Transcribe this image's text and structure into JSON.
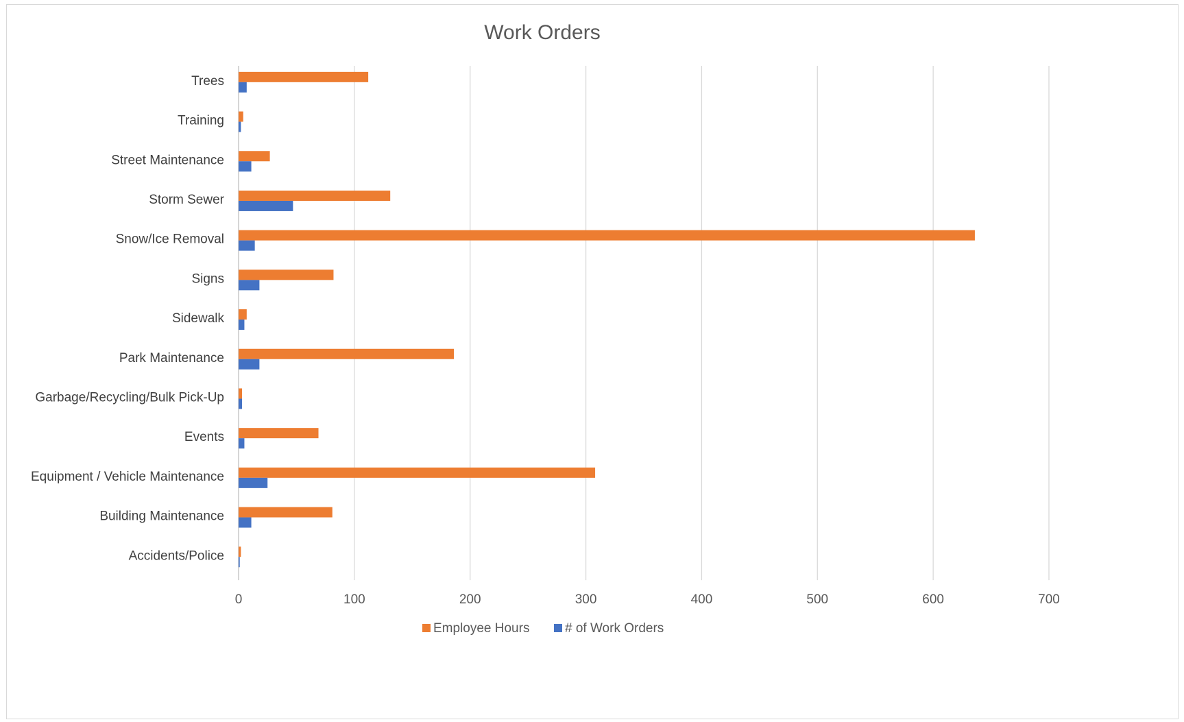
{
  "chart_data": {
    "type": "bar",
    "orientation": "horizontal",
    "title": "Work Orders",
    "xlabel": "",
    "ylabel": "",
    "xlim": [
      0,
      700
    ],
    "xticks": [
      "0",
      "100",
      "200",
      "300",
      "400",
      "500",
      "600",
      "700"
    ],
    "grid": true,
    "legend_position": "bottom",
    "categories": [
      "Trees",
      "Training",
      "Street Maintenance",
      "Storm Sewer",
      "Snow/Ice Removal",
      "Signs",
      "Sidewalk",
      "Park Maintenance",
      "Garbage/Recycling/Bulk Pick-Up",
      "Events",
      "Equipment / Vehicle Maintenance",
      "Building Maintenance",
      "Accidents/Police"
    ],
    "series": [
      {
        "name": "Employee Hours",
        "color": "#ED7D31",
        "values": [
          112,
          4,
          27,
          131,
          636,
          82,
          7,
          186,
          3,
          69,
          308,
          81,
          2
        ]
      },
      {
        "name": "# of Work Orders",
        "color": "#4472C4",
        "values": [
          7,
          2,
          11,
          47,
          14,
          18,
          5,
          18,
          3,
          5,
          25,
          11,
          1
        ]
      }
    ]
  }
}
